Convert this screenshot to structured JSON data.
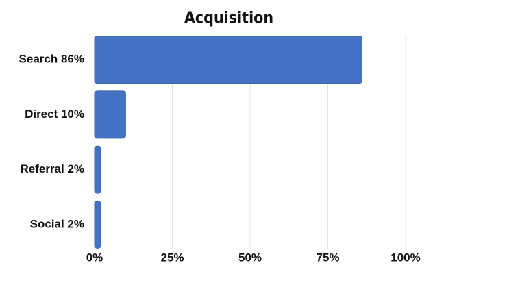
{
  "chart_data": {
    "type": "bar",
    "orientation": "horizontal",
    "title": "Acquisition",
    "categories": [
      "Search 86%",
      "Direct 10%",
      "Referral 2%",
      "Social 2%"
    ],
    "values": [
      86,
      10,
      2,
      2
    ],
    "color": "#4472c4",
    "xlim": [
      0,
      100
    ],
    "xticks": [
      {
        "value": 0,
        "label": "0%"
      },
      {
        "value": 25,
        "label": "25%"
      },
      {
        "value": 50,
        "label": "50%"
      },
      {
        "value": 75,
        "label": "75%"
      },
      {
        "value": 100,
        "label": "100%"
      }
    ],
    "grid": true
  }
}
